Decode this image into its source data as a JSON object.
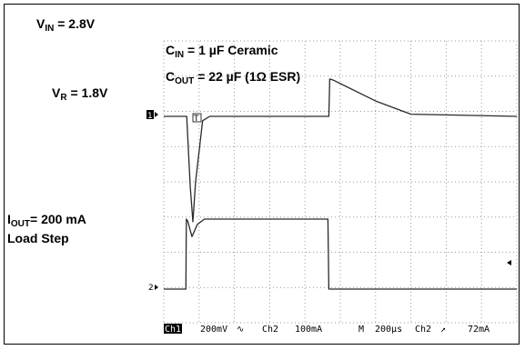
{
  "labels": {
    "vin_prefix": "V",
    "vin_sub": "IN",
    "vin_value": " = 2.8V",
    "vr_prefix": "V",
    "vr_sub": "R",
    "vr_value": " = 1.8V",
    "iout_prefix": "I",
    "iout_sub": "OUT",
    "iout_value": "= 200 mA",
    "load_step": "Load Step",
    "cin_prefix": "C",
    "cin_sub": "IN",
    "cin_value": " = 1 µF Ceramic",
    "cout_prefix": "C",
    "cout_sub": "OUT",
    "cout_value": " = 22 µF (1Ω  ESR)"
  },
  "scope": {
    "ch1_marker": "1",
    "ch2_marker": "2",
    "trigger_marker": "T",
    "status_ch1": "Ch1",
    "status_ch1_scale": "200mV",
    "status_ch2": "Ch2",
    "status_ch2_scale": "100mA",
    "status_m": "M",
    "status_time": "200µs",
    "status_trig_src": "Ch2",
    "status_trig_level": "72mA",
    "colors": {
      "trace": "#2a2a2a",
      "grid": "#9a9a9a",
      "ch1_badge": "#000000"
    }
  },
  "chart_data": {
    "type": "line",
    "time_per_div_us": 200,
    "divisions": 10,
    "series": [
      {
        "name": "Ch1",
        "units": "mV offset from V_R",
        "points": [
          [
            0,
            0
          ],
          [
            130,
            0
          ],
          [
            150,
            -320
          ],
          [
            165,
            -480
          ],
          [
            180,
            -300
          ],
          [
            220,
            -20
          ],
          [
            260,
            0
          ],
          [
            935,
            0
          ],
          [
            940,
            170
          ],
          [
            960,
            165
          ],
          [
            1200,
            70
          ],
          [
            1400,
            10
          ],
          [
            2000,
            0
          ]
        ]
      },
      {
        "name": "Ch2",
        "units": "mA",
        "points": [
          [
            0,
            0
          ],
          [
            125,
            0
          ],
          [
            128,
            200
          ],
          [
            135,
            195
          ],
          [
            160,
            150
          ],
          [
            190,
            185
          ],
          [
            230,
            200
          ],
          [
            930,
            200
          ],
          [
            935,
            0
          ],
          [
            2000,
            0
          ]
        ]
      }
    ]
  }
}
